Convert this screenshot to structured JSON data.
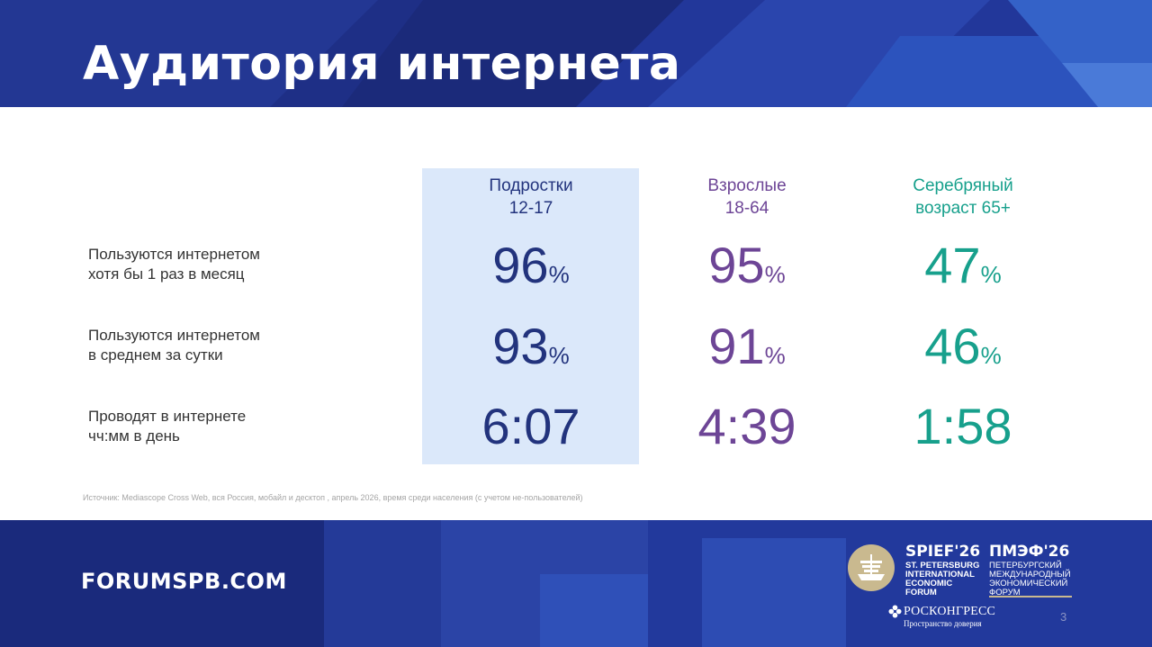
{
  "slide": {
    "title": "Аудитория интернета",
    "columns": [
      {
        "line1": "Подростки",
        "line2": "12-17",
        "color": "#22337d"
      },
      {
        "line1": "Взрослые",
        "line2": "18-64",
        "color": "#6d4596"
      },
      {
        "line1": "Серебряный",
        "line2": "возраст 65+",
        "color": "#17a08c"
      }
    ],
    "rows": [
      {
        "label_line1": "Пользуются интернетом",
        "label_line2": "хотя бы 1 раз в месяц",
        "values": [
          {
            "number": "96",
            "unit": "%"
          },
          {
            "number": "95",
            "unit": "%"
          },
          {
            "number": "47",
            "unit": "%"
          }
        ]
      },
      {
        "label_line1": "Пользуются интернетом",
        "label_line2": "в среднем за сутки",
        "values": [
          {
            "number": "93",
            "unit": "%"
          },
          {
            "number": "91",
            "unit": "%"
          },
          {
            "number": "46",
            "unit": "%"
          }
        ]
      },
      {
        "label_line1": "Проводят в интернете",
        "label_line2": "чч:мм в день",
        "values": [
          {
            "number": "6:07",
            "unit": ""
          },
          {
            "number": "4:39",
            "unit": ""
          },
          {
            "number": "1:58",
            "unit": ""
          }
        ]
      }
    ],
    "source": "Источник: Mediascope Cross Web, вся Россия, мобайл и десктоп , апрель 2026, время среди населения (с учетом не-пользователей)",
    "page_number": "3"
  },
  "footer": {
    "website": "FORUMSPB.COM",
    "spief_en_main": "SPIEF'26",
    "spief_en_lines": [
      "ST. PETERSBURG",
      "INTERNATIONAL",
      "ECONOMIC",
      "FORUM"
    ],
    "spief_ru_main": "ПМЭФ'26",
    "spief_ru_lines": [
      "ПЕТЕРБУРГСКИЙ",
      "МЕЖДУНАРОДНЫЙ",
      "ЭКОНОМИЧЕСКИЙ",
      "ФОРУМ"
    ],
    "roscongress_name": "РОСКОНГРЕСС",
    "roscongress_tagline": "Пространство доверия"
  },
  "colors": {
    "band": "#1e2f86",
    "highlight": "#dbe8fa",
    "teens": "#22337d",
    "adults": "#6d4596",
    "seniors": "#17a08c",
    "emblem_gold": "#c9b98f"
  },
  "icons": {
    "forum_emblem": "ship-emblem-icon",
    "roscongress_logo": "roscongress-logo-icon"
  }
}
